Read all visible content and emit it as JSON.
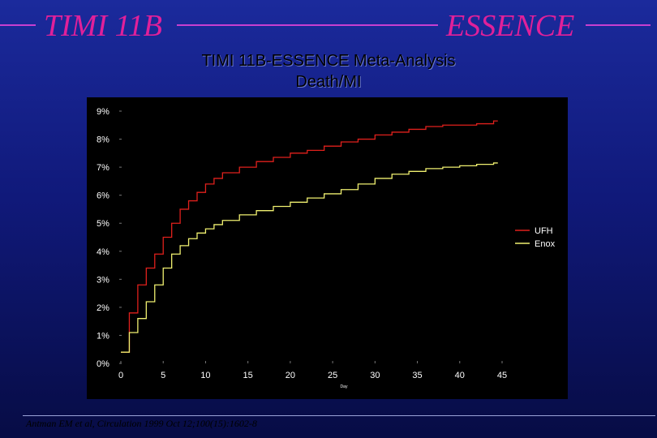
{
  "header": {
    "left_title": "TIMI 11B",
    "right_title": "ESSENCE",
    "subtitle_line1": "TIMI 11B-ESSENCE Meta-Analysis",
    "subtitle_line2": "Death/MI",
    "accent_color": "#e0209a"
  },
  "footer": {
    "citation": "Antman EM et al, Circulation 1999 Oct 12;100(15):1602-8"
  },
  "chart_data": {
    "type": "line",
    "title": "",
    "xlabel": "Day",
    "ylabel": "",
    "xlim": [
      0,
      45
    ],
    "ylim": [
      0,
      9
    ],
    "x_ticks": [
      0,
      5,
      10,
      15,
      20,
      25,
      30,
      35,
      40,
      45
    ],
    "x_tick_labels": [
      "0",
      "5",
      "10",
      "15",
      "20",
      "25",
      "30",
      "35",
      "40",
      "45"
    ],
    "y_ticks": [
      0,
      1,
      2,
      3,
      4,
      5,
      6,
      7,
      8,
      9
    ],
    "y_tick_labels": [
      "0%",
      "1%",
      "2%",
      "3%",
      "4%",
      "5%",
      "6%",
      "7%",
      "8%",
      "9%"
    ],
    "legend_position": "right",
    "series": [
      {
        "name": "UFH",
        "color": "#e0201c",
        "step": true,
        "x": [
          0,
          1,
          2,
          3,
          4,
          5,
          6,
          7,
          8,
          9,
          10,
          11,
          12,
          14,
          16,
          18,
          20,
          22,
          24,
          26,
          28,
          30,
          32,
          34,
          36,
          38,
          40,
          42,
          44
        ],
        "y": [
          0.4,
          1.8,
          2.8,
          3.4,
          3.9,
          4.5,
          5.0,
          5.5,
          5.8,
          6.1,
          6.4,
          6.6,
          6.8,
          7.0,
          7.2,
          7.35,
          7.5,
          7.6,
          7.75,
          7.9,
          8.0,
          8.15,
          8.25,
          8.35,
          8.45,
          8.5,
          8.5,
          8.55,
          8.65
        ]
      },
      {
        "name": "Enox",
        "color": "#f0f070",
        "step": true,
        "x": [
          0,
          1,
          2,
          3,
          4,
          5,
          6,
          7,
          8,
          9,
          10,
          11,
          12,
          14,
          16,
          18,
          20,
          22,
          24,
          26,
          28,
          30,
          32,
          34,
          36,
          38,
          40,
          42,
          44
        ],
        "y": [
          0.4,
          1.1,
          1.6,
          2.2,
          2.8,
          3.4,
          3.9,
          4.2,
          4.45,
          4.65,
          4.8,
          4.95,
          5.1,
          5.3,
          5.45,
          5.6,
          5.75,
          5.9,
          6.05,
          6.2,
          6.4,
          6.6,
          6.75,
          6.85,
          6.95,
          7.0,
          7.05,
          7.1,
          7.15
        ]
      }
    ]
  }
}
